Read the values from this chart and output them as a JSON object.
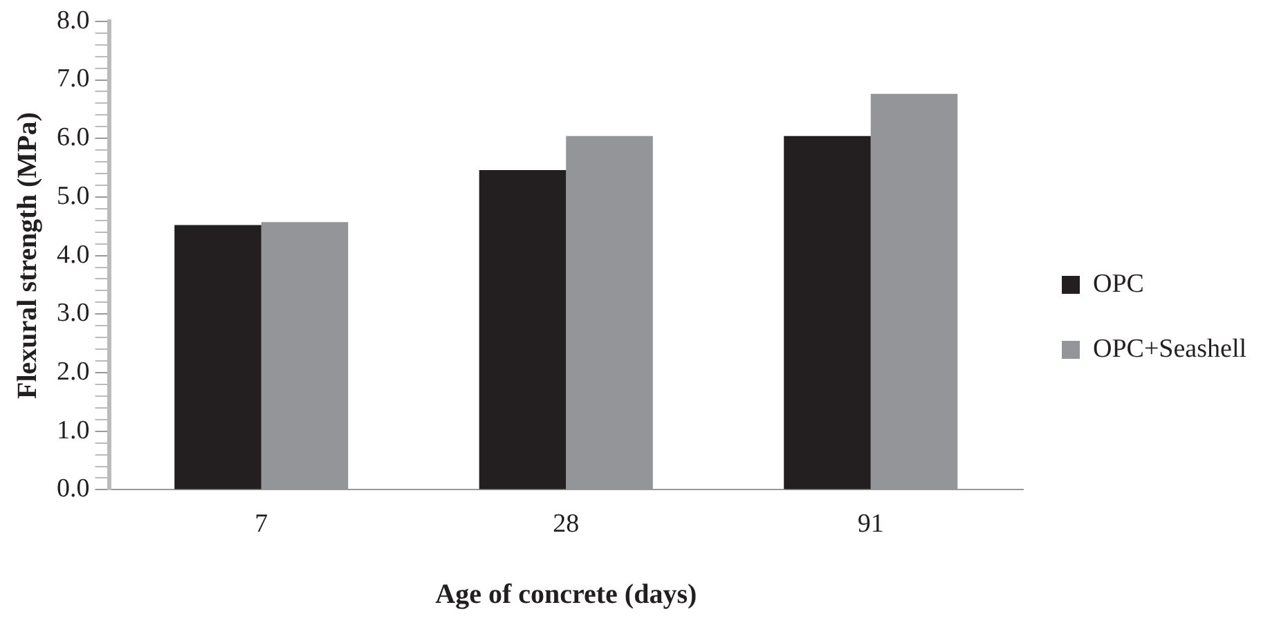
{
  "chart_data": {
    "type": "bar",
    "xlabel": "Age of concrete (days)",
    "ylabel": "Flexural strength (MPa)",
    "categories": [
      "7",
      "28",
      "91"
    ],
    "series": [
      {
        "name": "OPC",
        "color": "#231f20",
        "values": [
          4.52,
          5.46,
          6.04
        ]
      },
      {
        "name": "OPC+Seashell",
        "color": "#939598",
        "values": [
          4.57,
          6.04,
          6.76
        ]
      }
    ],
    "ylim": [
      0,
      8
    ],
    "yticks": [
      {
        "value": 0,
        "label": "0.0"
      },
      {
        "value": 0.2,
        "label": null
      },
      {
        "value": 0.4,
        "label": null
      },
      {
        "value": 0.6,
        "label": null
      },
      {
        "value": 0.8,
        "label": null
      },
      {
        "value": 1,
        "label": "1.0"
      },
      {
        "value": 1.2,
        "label": null
      },
      {
        "value": 1.4,
        "label": null
      },
      {
        "value": 1.6,
        "label": null
      },
      {
        "value": 1.8,
        "label": null
      },
      {
        "value": 2,
        "label": "2.0"
      },
      {
        "value": 2.2,
        "label": null
      },
      {
        "value": 2.4,
        "label": null
      },
      {
        "value": 2.6,
        "label": null
      },
      {
        "value": 2.8,
        "label": null
      },
      {
        "value": 3,
        "label": "3.0"
      },
      {
        "value": 3.2,
        "label": null
      },
      {
        "value": 3.4,
        "label": null
      },
      {
        "value": 3.6,
        "label": null
      },
      {
        "value": 3.8,
        "label": null
      },
      {
        "value": 4,
        "label": "4.0"
      },
      {
        "value": 4.2,
        "label": null
      },
      {
        "value": 4.4,
        "label": null
      },
      {
        "value": 4.6,
        "label": null
      },
      {
        "value": 4.8,
        "label": null
      },
      {
        "value": 5,
        "label": "5.0"
      },
      {
        "value": 5.2,
        "label": null
      },
      {
        "value": 5.4,
        "label": null
      },
      {
        "value": 5.6,
        "label": null
      },
      {
        "value": 5.8,
        "label": null
      },
      {
        "value": 6,
        "label": "6.0"
      },
      {
        "value": 6.2,
        "label": null
      },
      {
        "value": 6.4,
        "label": null
      },
      {
        "value": 6.6,
        "label": null
      },
      {
        "value": 6.8,
        "label": null
      },
      {
        "value": 7,
        "label": "7.0"
      },
      {
        "value": 7.2,
        "label": null
      },
      {
        "value": 7.4,
        "label": null
      },
      {
        "value": 7.6,
        "label": null
      },
      {
        "value": 7.8,
        "label": null
      },
      {
        "value": 8,
        "label": "8.0"
      }
    ],
    "grid": false,
    "legend": "right"
  }
}
